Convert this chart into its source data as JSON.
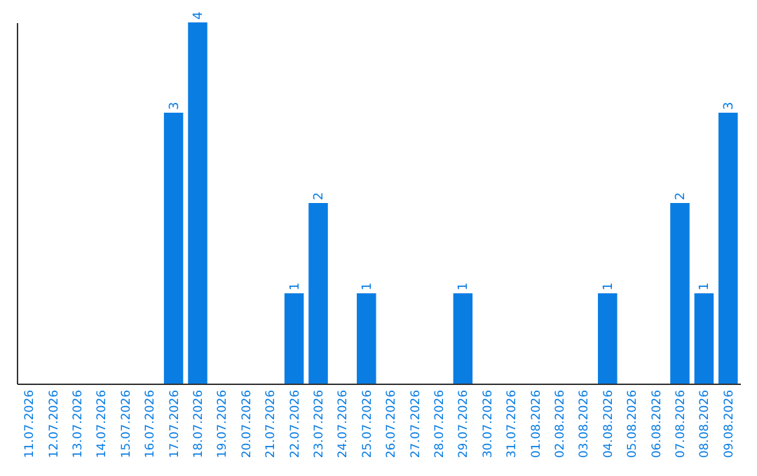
{
  "chart_data": {
    "type": "bar",
    "categories": [
      "11.07.2026",
      "12.07.2026",
      "13.07.2026",
      "14.07.2026",
      "15.07.2026",
      "16.07.2026",
      "17.07.2026",
      "18.07.2026",
      "19.07.2026",
      "20.07.2026",
      "21.07.2026",
      "22.07.2026",
      "23.07.2026",
      "24.07.2026",
      "25.07.2026",
      "26.07.2026",
      "27.07.2026",
      "28.07.2026",
      "29.07.2026",
      "30.07.2026",
      "31.07.2026",
      "01.08.2026",
      "02.08.2026",
      "03.08.2026",
      "04.08.2026",
      "05.08.2026",
      "06.08.2026",
      "07.08.2026",
      "08.08.2026",
      "09.08.2026"
    ],
    "values": [
      0,
      0,
      0,
      0,
      0,
      0,
      3,
      4,
      0,
      0,
      0,
      1,
      2,
      0,
      1,
      0,
      0,
      0,
      1,
      0,
      0,
      0,
      0,
      0,
      1,
      0,
      0,
      2,
      1,
      3
    ],
    "value_labels": [
      null,
      null,
      null,
      null,
      null,
      null,
      "3",
      "4",
      null,
      null,
      null,
      "1",
      "2",
      null,
      "1",
      null,
      null,
      null,
      "1",
      null,
      null,
      null,
      null,
      null,
      "1",
      null,
      null,
      "2",
      "1",
      "3"
    ],
    "color": "#0a7de3",
    "ylim": [
      0,
      4
    ],
    "tick_labels": "x"
  }
}
